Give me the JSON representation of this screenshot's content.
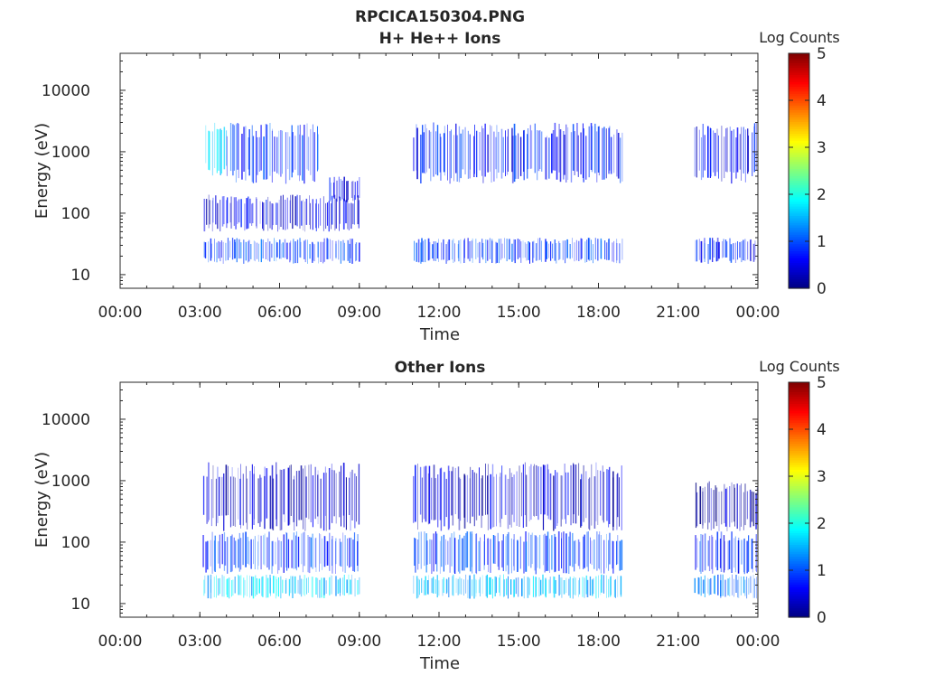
{
  "figure": {
    "title_line1": "RPCICA150304.PNG"
  },
  "colors": {
    "background": "#ffffff",
    "axis": "#262626",
    "colormap": [
      "#00007f",
      "#0000ff",
      "#007fff",
      "#00ffff",
      "#7fff7f",
      "#ffff00",
      "#ff7f00",
      "#ff0000",
      "#7f0000"
    ]
  },
  "chart_data": [
    {
      "type": "heatmap",
      "title": "H+ He++ Ions",
      "xlabel": "Time",
      "ylabel": "Energy (eV)",
      "x_ticks": [
        "00:00",
        "03:00",
        "06:00",
        "09:00",
        "12:00",
        "15:00",
        "18:00",
        "21:00",
        "00:00"
      ],
      "xlim_hours": [
        0,
        24
      ],
      "y_scale": "log",
      "y_ticks": [
        10,
        100,
        1000,
        10000
      ],
      "ylim": [
        6,
        40000
      ],
      "colorbar": {
        "label": "Log Counts",
        "ticks": [
          0,
          1,
          2,
          3,
          4,
          5
        ],
        "range": [
          0,
          5
        ],
        "colormap": "jet"
      },
      "data_segments_hours": [
        [
          3.1,
          9.0
        ],
        [
          11.0,
          18.9
        ],
        [
          21.6,
          24.0
        ]
      ],
      "bands": [
        {
          "hours": [
            3.1,
            9.0
          ],
          "energy_eV": [
            15,
            40
          ],
          "log_counts": 0.9
        },
        {
          "hours": [
            3.1,
            9.0
          ],
          "energy_eV": [
            50,
            200
          ],
          "log_counts": 0.5
        },
        {
          "hours": [
            3.2,
            4.0
          ],
          "energy_eV": [
            400,
            3000
          ],
          "log_counts": 1.6
        },
        {
          "hours": [
            4.0,
            7.5
          ],
          "energy_eV": [
            300,
            3000
          ],
          "log_counts": 0.9
        },
        {
          "hours": [
            7.8,
            9.0
          ],
          "energy_eV": [
            150,
            400
          ],
          "log_counts": 0.6
        },
        {
          "hours": [
            11.0,
            18.9
          ],
          "energy_eV": [
            15,
            40
          ],
          "log_counts": 0.9
        },
        {
          "hours": [
            11.0,
            18.9
          ],
          "energy_eV": [
            300,
            3000
          ],
          "log_counts": 0.7
        },
        {
          "hours": [
            21.6,
            24.0
          ],
          "energy_eV": [
            15,
            40
          ],
          "log_counts": 0.8
        },
        {
          "hours": [
            21.6,
            24.0
          ],
          "energy_eV": [
            300,
            3000
          ],
          "log_counts": 0.6
        }
      ]
    },
    {
      "type": "heatmap",
      "title": "Other Ions",
      "xlabel": "Time",
      "ylabel": "Energy (eV)",
      "x_ticks": [
        "00:00",
        "03:00",
        "06:00",
        "09:00",
        "12:00",
        "15:00",
        "18:00",
        "21:00",
        "00:00"
      ],
      "xlim_hours": [
        0,
        24
      ],
      "y_scale": "log",
      "y_ticks": [
        10,
        100,
        1000,
        10000
      ],
      "ylim": [
        6,
        40000
      ],
      "colorbar": {
        "label": "Log Counts",
        "ticks": [
          0,
          1,
          2,
          3,
          4,
          5
        ],
        "range": [
          0,
          5
        ],
        "colormap": "jet"
      },
      "data_segments_hours": [
        [
          3.1,
          9.0
        ],
        [
          11.0,
          18.9
        ],
        [
          21.6,
          24.0
        ]
      ],
      "bands": [
        {
          "hours": [
            3.1,
            9.0
          ],
          "energy_eV": [
            12,
            30
          ],
          "log_counts": 1.6
        },
        {
          "hours": [
            3.1,
            9.0
          ],
          "energy_eV": [
            30,
            150
          ],
          "log_counts": 0.9
        },
        {
          "hours": [
            3.1,
            9.0
          ],
          "energy_eV": [
            150,
            2000
          ],
          "log_counts": 0.4
        },
        {
          "hours": [
            11.0,
            18.9
          ],
          "energy_eV": [
            12,
            30
          ],
          "log_counts": 1.5
        },
        {
          "hours": [
            11.0,
            18.9
          ],
          "energy_eV": [
            30,
            150
          ],
          "log_counts": 0.9
        },
        {
          "hours": [
            11.0,
            18.9
          ],
          "energy_eV": [
            150,
            2000
          ],
          "log_counts": 0.4
        },
        {
          "hours": [
            21.6,
            24.0
          ],
          "energy_eV": [
            12,
            30
          ],
          "log_counts": 1.2
        },
        {
          "hours": [
            21.6,
            24.0
          ],
          "energy_eV": [
            30,
            150
          ],
          "log_counts": 0.8
        },
        {
          "hours": [
            21.6,
            24.0
          ],
          "energy_eV": [
            150,
            1000
          ],
          "log_counts": 0.3
        }
      ]
    }
  ]
}
